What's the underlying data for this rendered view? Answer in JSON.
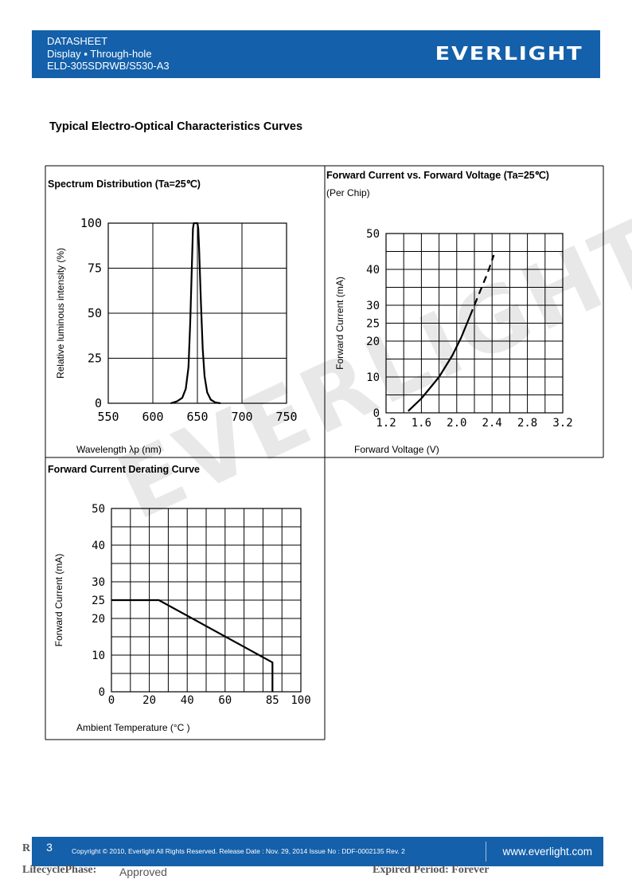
{
  "header": {
    "line1": "DATASHEET",
    "line2": "Display ▪ Through-hole",
    "line3": "ELD-305SDRWB/S530-A3",
    "logo": "EVERLIGHT"
  },
  "section_title": "Typical Electro-Optical Characteristics Curves",
  "watermark": "EVERLIGHT",
  "panels": {
    "spectrum_title": "Spectrum Distribution (Ta=25℃)",
    "fv_title": "Forward Current vs. Forward Voltage (Ta=25℃)",
    "fv_subtitle": "(Per Chip)",
    "derating_title": "Forward Current Derating Curve"
  },
  "chart_data": [
    {
      "type": "line",
      "title": "Spectrum Distribution (Ta=25℃)",
      "xlabel": "Wavelength λp (nm)",
      "ylabel": "Relative luminous intensity (%)",
      "xlim": [
        550,
        750
      ],
      "ylim": [
        0,
        100
      ],
      "xticks": [
        "550",
        "600",
        "650",
        "700",
        "750"
      ],
      "yticks": [
        "0",
        "25",
        "50",
        "75",
        "100"
      ],
      "grid": true,
      "series": [
        {
          "x": [
            620,
            627,
            633,
            637,
            640,
            642,
            644,
            645,
            646,
            648,
            650,
            651,
            652,
            654,
            656,
            658,
            661,
            665,
            670,
            676
          ],
          "y": [
            0,
            1,
            3,
            8,
            20,
            45,
            80,
            97,
            100,
            100,
            100,
            97,
            85,
            55,
            30,
            15,
            6,
            2,
            0.5,
            0
          ]
        }
      ]
    },
    {
      "type": "line",
      "title": "Forward Current vs. Forward Voltage (Ta=25℃)",
      "xlabel": "Forward Voltage (V)",
      "ylabel": "Forward Current (mA)",
      "xlim": [
        1.2,
        3.2
      ],
      "ylim": [
        0,
        50
      ],
      "xticks": [
        "1.2",
        "1.6",
        "2.0",
        "2.4",
        "2.8",
        "3.2"
      ],
      "yticks": [
        "0",
        "10",
        "20",
        "25",
        "30",
        "40",
        "50"
      ],
      "grid": true,
      "series": [
        {
          "style": "solid",
          "x": [
            1.45,
            1.6,
            1.8,
            1.95,
            2.05,
            2.15
          ],
          "y": [
            0.5,
            4,
            10,
            16,
            21,
            27
          ]
        },
        {
          "style": "dashed",
          "x": [
            2.15,
            2.25,
            2.35,
            2.42
          ],
          "y": [
            27,
            33,
            39,
            44
          ]
        }
      ]
    },
    {
      "type": "line",
      "title": "Forward Current Derating Curve",
      "xlabel": "Ambient Temperature (°C )",
      "ylabel": "Forward Current (mA)",
      "xlim": [
        0,
        100
      ],
      "ylim": [
        0,
        50
      ],
      "xticks": [
        "0",
        "20",
        "40",
        "60",
        "85",
        "100"
      ],
      "yticks": [
        "0",
        "10",
        "20",
        "25",
        "30",
        "40",
        "50"
      ],
      "grid": true,
      "series": [
        {
          "x": [
            0,
            25,
            85,
            85
          ],
          "y": [
            25,
            25,
            8,
            0
          ]
        }
      ]
    }
  ],
  "footer": {
    "page_number": "3",
    "copyright": "Copyright © 2010, Everlight All Rights Reserved. Release Date : Nov. 29, 2014 Issue No : DDF-0002135 Rev. 2",
    "website": "www.everlight.com",
    "lifecycle_label": "LifecyclePhase:",
    "lifecycle_value": "Approved",
    "expired": "Expired Period: Forever",
    "r_letter": "R"
  }
}
